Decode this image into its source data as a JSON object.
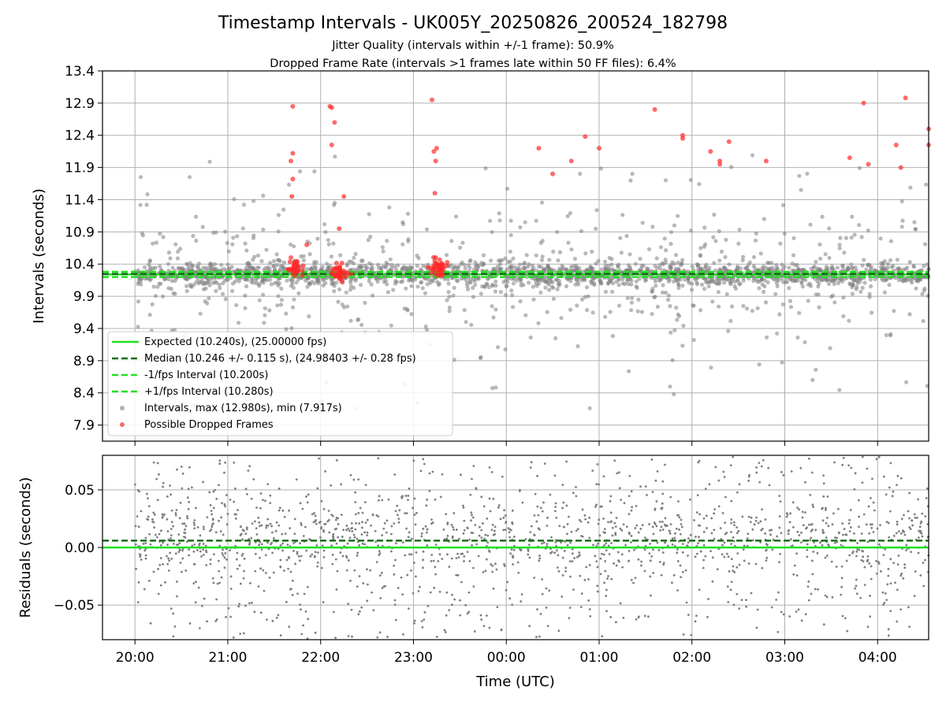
{
  "title": "Timestamp Intervals - UK005Y_20250826_200524_182798",
  "subtitle_1": "Jitter Quality (intervals within +/-1 frame): 50.9%",
  "subtitle_2": "Dropped Frame Rate (intervals >1 frames late within 50 FF files): 6.4%",
  "colors": {
    "expected": "#22e022",
    "median": "#0b6e0b",
    "interval_pm": "#22e022",
    "intervals": "#7f7f7f",
    "dropped": "#ff2a2a",
    "grid": "#b0b0b0"
  },
  "chart_data": [
    {
      "type": "scatter",
      "ylabel": "Intervals (seconds)",
      "ylim": [
        7.65,
        13.4
      ],
      "yticks": [
        "7.9",
        "8.4",
        "8.9",
        "9.4",
        "9.9",
        "10.4",
        "10.9",
        "11.4",
        "11.9",
        "12.4",
        "12.9",
        "13.4"
      ],
      "xlim_hours": [
        19.65,
        28.55
      ],
      "grid": true,
      "legend_position": "lower-left",
      "lines": [
        {
          "name": "Expected (10.240s), (25.00000 fps)",
          "y": 10.24,
          "style": "solid",
          "color": "#22e022"
        },
        {
          "name": "Median (10.246 +/- 0.115 s), (24.98403 +/- 0.28 fps)",
          "y": 10.246,
          "style": "dashed",
          "color": "#0b6e0b"
        },
        {
          "name": "-1/fps Interval (10.200s)",
          "y": 10.2,
          "style": "dashed",
          "color": "#22e022"
        },
        {
          "name": "+1/fps Interval (10.280s)",
          "y": 10.28,
          "style": "dashed",
          "color": "#22e022"
        }
      ],
      "series": [
        {
          "name": "Intervals, max (12.980s), min (7.917s)",
          "marker": "circle",
          "color": "#7f7f7f",
          "points_note": "approx 2700 points, mostly clustered around 10.2-10.3s with scatter 8.0-12.9s"
        },
        {
          "name": "Possible Dropped Frames",
          "marker": "circle",
          "color": "#ff2a2a",
          "x_hours": [
            21.7,
            21.7,
            21.68,
            21.7,
            21.69,
            21.68,
            21.85,
            22.1,
            22.12,
            22.15,
            22.12,
            22.2,
            22.25,
            23.2,
            23.25,
            23.22,
            23.24,
            23.23,
            23.24,
            24.5,
            24.35,
            24.7,
            24.85,
            25.0,
            25.6,
            25.9,
            25.9,
            26.2,
            26.3,
            26.3,
            26.4,
            26.8,
            27.7,
            27.85,
            27.9,
            28.2,
            28.25,
            28.3,
            28.55,
            28.55
          ],
          "y": [
            12.85,
            12.12,
            12.0,
            11.72,
            11.45,
            10.5,
            10.7,
            12.85,
            12.83,
            12.6,
            12.25,
            10.95,
            11.45,
            12.95,
            12.2,
            12.15,
            12.0,
            11.5,
            10.5,
            11.8,
            12.2,
            12.0,
            12.38,
            12.2,
            12.8,
            12.4,
            12.35,
            12.15,
            11.95,
            12.0,
            12.3,
            12.0,
            12.05,
            12.9,
            11.95,
            12.25,
            11.9,
            12.98,
            12.5,
            12.25
          ]
        }
      ]
    },
    {
      "type": "scatter",
      "ylabel": "Residuals (seconds)",
      "xlabel": "Time (UTC)",
      "ylim": [
        -0.08,
        0.08
      ],
      "yticks": [
        "−0.05",
        "0.00",
        "0.05"
      ],
      "xticks": [
        "20:00",
        "21:00",
        "22:00",
        "23:00",
        "00:00",
        "01:00",
        "02:00",
        "03:00",
        "04:00"
      ],
      "xtick_hours": [
        20,
        21,
        22,
        23,
        24,
        25,
        26,
        27,
        28
      ],
      "grid": true,
      "lines": [
        {
          "y": 0.0,
          "style": "solid",
          "color": "#22e022"
        },
        {
          "y": 0.006,
          "style": "dashed",
          "color": "#0b6e0b"
        }
      ],
      "series": [
        {
          "marker": "dot",
          "color": "#7f7f7f",
          "points_note": "approx 2700 residual points spread -0.08 to 0.08"
        }
      ]
    }
  ]
}
